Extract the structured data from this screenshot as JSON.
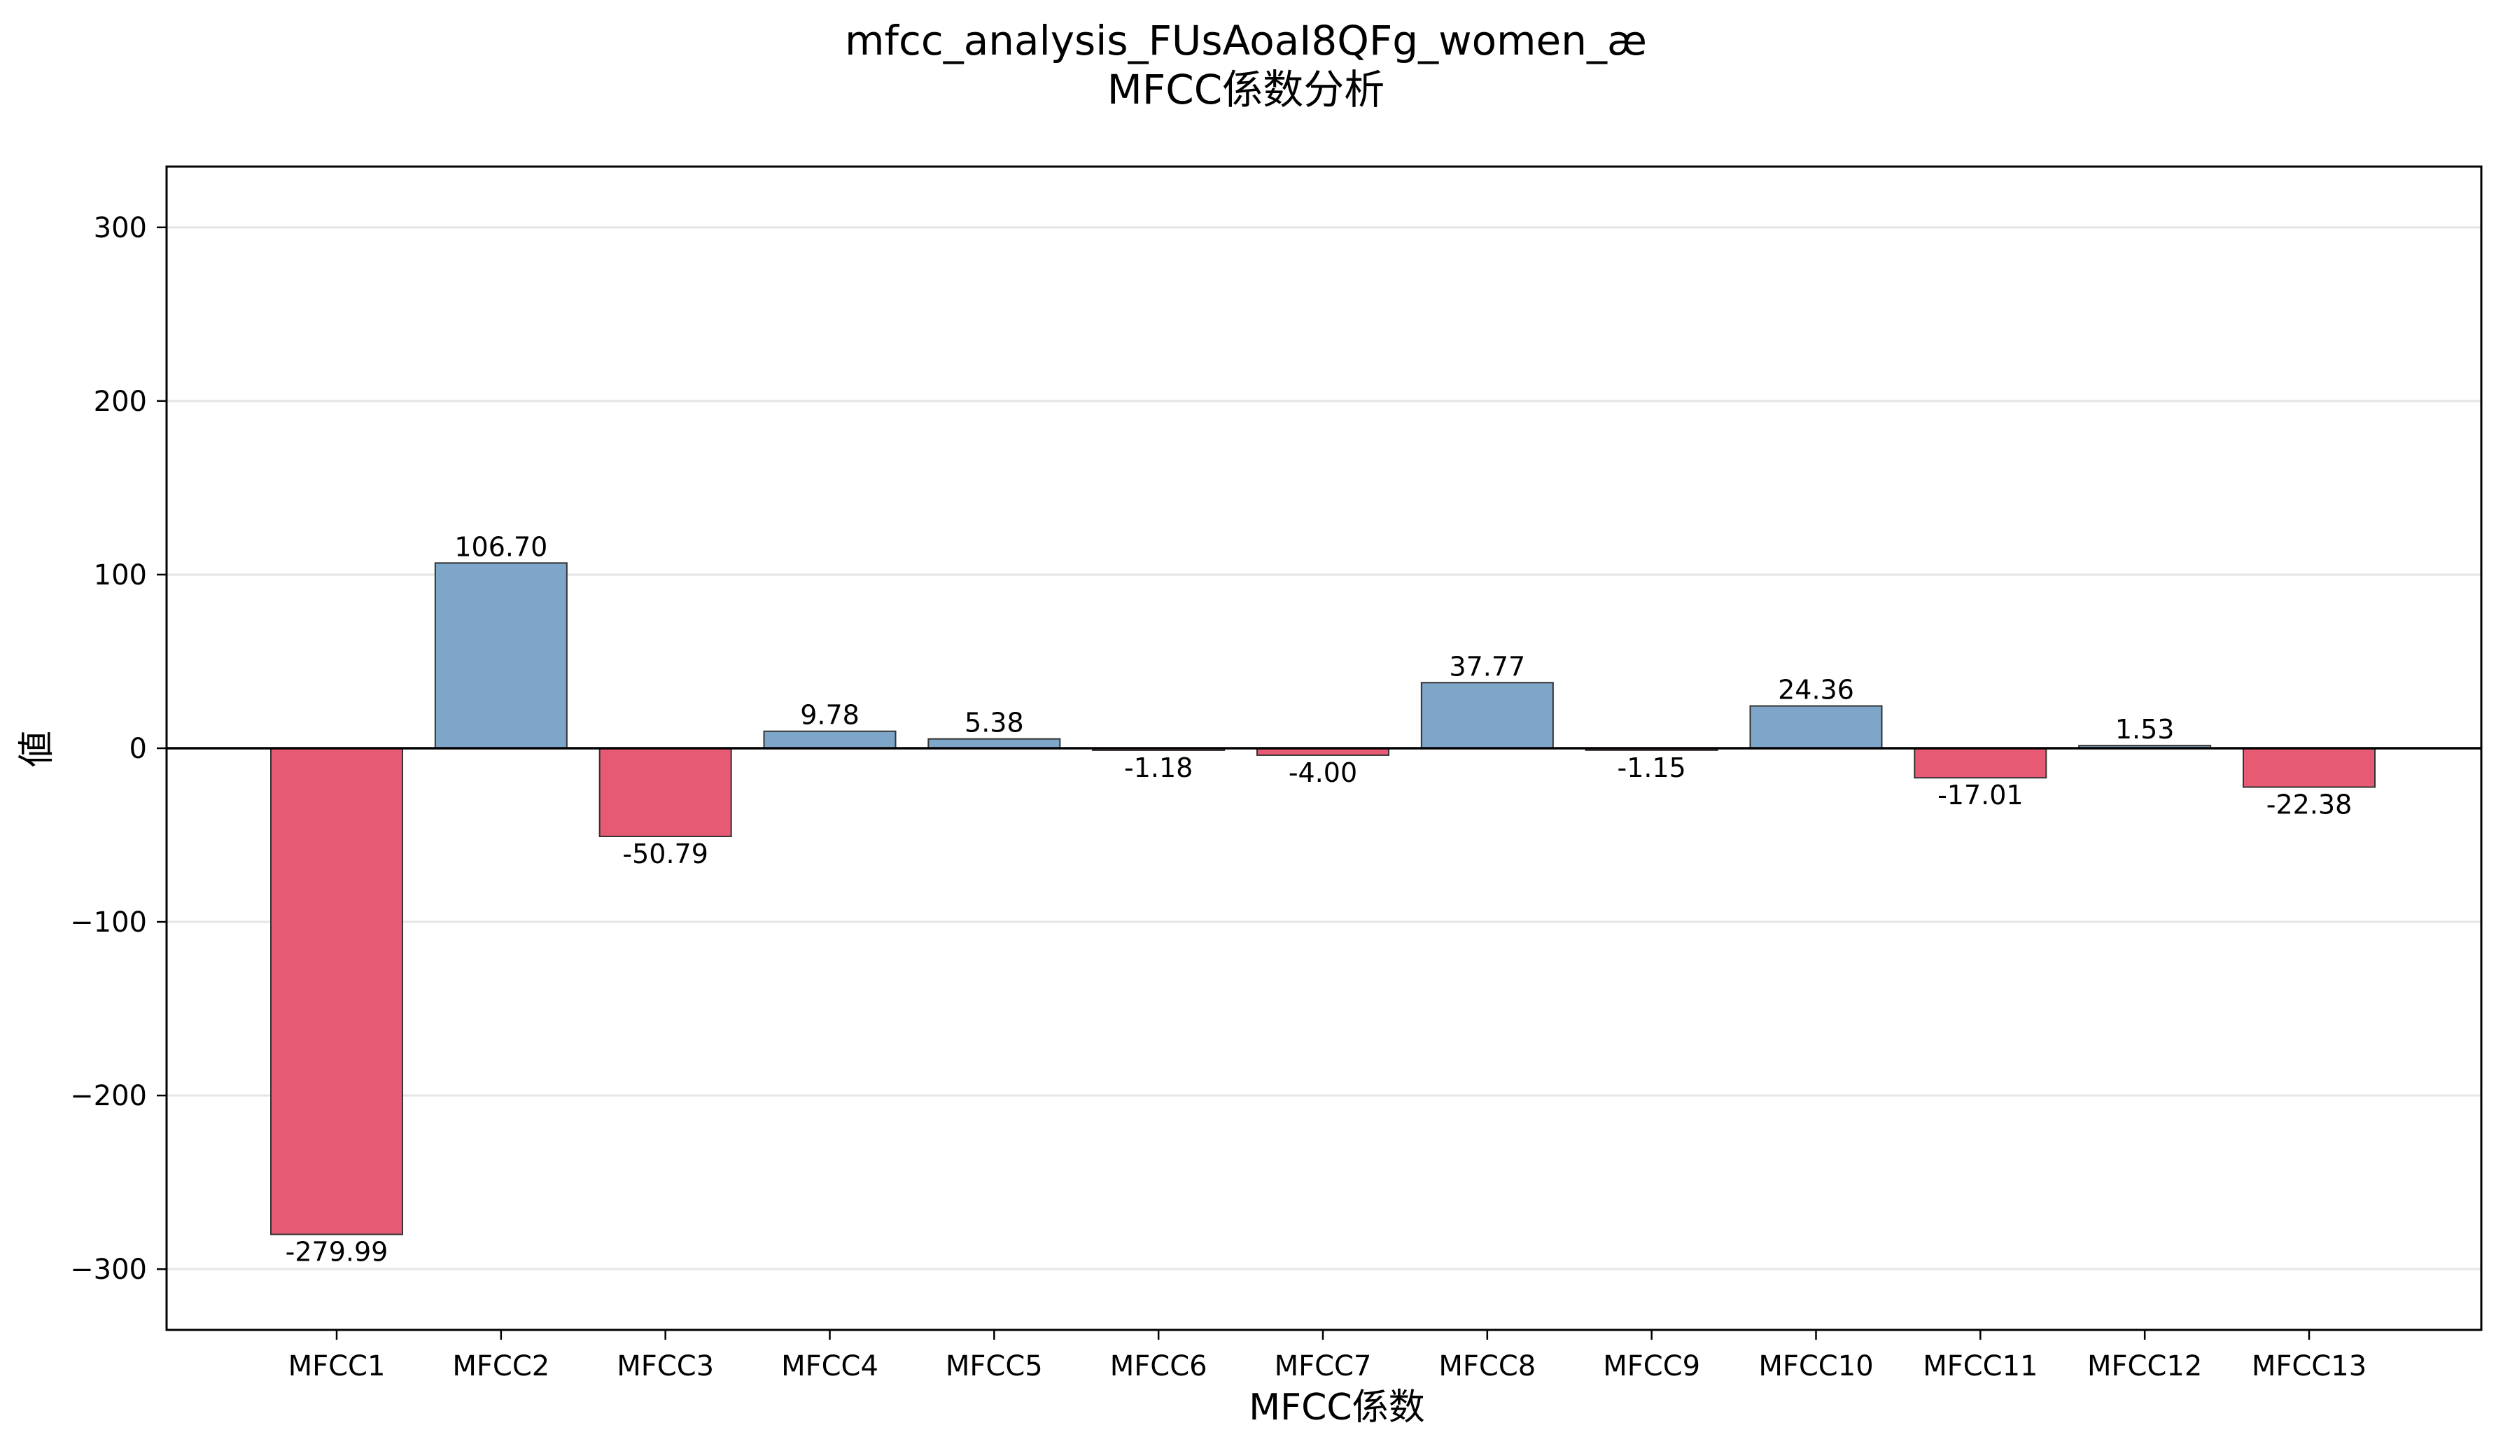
{
  "colors": {
    "positive": "#7da6c9",
    "negative": "#e65a74",
    "grid": "#e5e5e5",
    "axis": "#000000"
  },
  "chart_data": {
    "type": "bar",
    "title": "mfcc_analysis_FUsAoaI8QFg_women_æ",
    "subtitle": "MFCC係数分析",
    "xlabel": "MFCC係数",
    "ylabel": "値",
    "ylim": [
      -335,
      335
    ],
    "yticks": [
      -300,
      -200,
      -100,
      0,
      100,
      200,
      300
    ],
    "ytick_labels": [
      "−300",
      "−200",
      "−100",
      "0",
      "100",
      "200",
      "300"
    ],
    "grid": true,
    "categories": [
      "MFCC1",
      "MFCC2",
      "MFCC3",
      "MFCC4",
      "MFCC5",
      "MFCC6",
      "MFCC7",
      "MFCC8",
      "MFCC9",
      "MFCC10",
      "MFCC11",
      "MFCC12",
      "MFCC13"
    ],
    "values": [
      -279.99,
      106.7,
      -50.79,
      9.78,
      5.38,
      -1.18,
      -4.0,
      37.77,
      -1.15,
      24.36,
      -17.01,
      1.53,
      -22.38
    ],
    "value_labels": [
      "-279.99",
      "106.70",
      "-50.79",
      "9.78",
      "5.38",
      "-1.18",
      "-4.00",
      "37.77",
      "-1.15",
      "24.36",
      "-17.01",
      "1.53",
      "-22.38"
    ]
  }
}
